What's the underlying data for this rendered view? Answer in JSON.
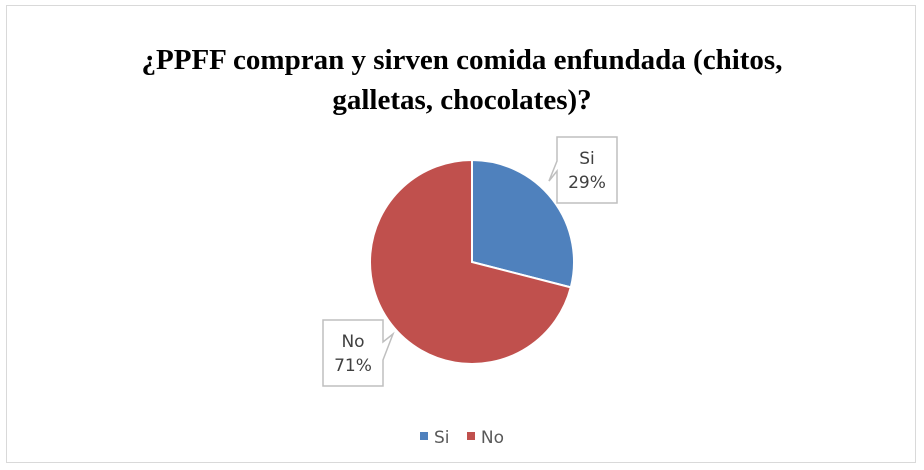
{
  "chart_data": {
    "type": "pie",
    "title_lines": [
      "¿PPFF compran y sirven comida enfundada (chitos,",
      "galletas, chocolates)?"
    ],
    "categories": [
      "Si",
      "No"
    ],
    "values": [
      29,
      71
    ],
    "data_labels": [
      {
        "category": "Si",
        "percent": "29%"
      },
      {
        "category": "No",
        "percent": "71%"
      }
    ],
    "colors": [
      "#4f81bd",
      "#c0504d"
    ],
    "legend_position": "bottom"
  }
}
